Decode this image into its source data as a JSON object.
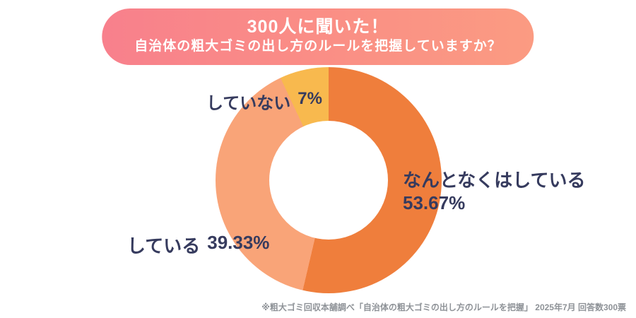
{
  "banner": {
    "line1": "300人に聞いた！",
    "line2": "自治体の粗大ゴミの出し方のルールを把握していますか？"
  },
  "chart_data": {
    "type": "pie",
    "subtype": "donut",
    "title": "300人に聞いた！自治体の粗大ゴミの出し方のルールを把握していますか？",
    "start_angle_deg": 0,
    "direction": "clockwise",
    "total_percent": 100,
    "segments": [
      {
        "label": "なんとなくはしている",
        "value": 53.67,
        "percent_label": "53.67%",
        "color": "#EF7E3C"
      },
      {
        "label": "している",
        "value": 39.33,
        "percent_label": "39.33%",
        "color": "#F9A478"
      },
      {
        "label": "していない",
        "value": 7,
        "percent_label": "7%",
        "color": "#F8B94E"
      }
    ],
    "legend_position": "around-chart",
    "hole_color": "#ffffff"
  },
  "footnote": "※粗大ゴミ回収本舗調べ「自治体の粗大ゴミの出し方のルールを把握」 2025年7月 回答数300票",
  "colors": {
    "banner_gradient_start": "#F8808C",
    "banner_gradient_end": "#FB9B82",
    "label_text": "#363B5E",
    "footnote_text": "#8E9297"
  }
}
